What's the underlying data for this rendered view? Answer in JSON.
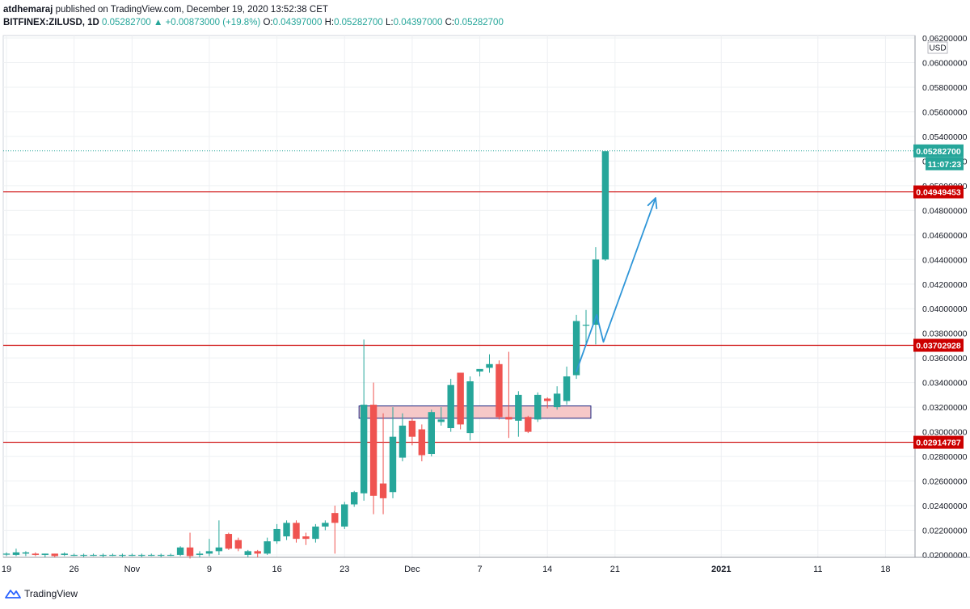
{
  "header": {
    "author": "atdhemaraj",
    "published_text": "published on TradingView.com, December 19, 2020 13:52:38 CET",
    "symbol": "BITFINEX:ZILUSD, 1D",
    "last": "0.05282700",
    "change": "▲ +0.00873000 (+19.8%)",
    "o_label": "O:",
    "o_value": "0.04397000",
    "h_label": "H:",
    "h_value": "0.05282700",
    "l_label": "L:",
    "l_value": "0.04397000",
    "c_label": "C:",
    "c_value": "0.05282700"
  },
  "footer": {
    "brand": "TradingView",
    "brand_icon": "tradingview-logo-icon"
  },
  "colors": {
    "up": "#26a69a",
    "down": "#ef5350",
    "level": "#cc0000",
    "arrow": "#2f96d8",
    "zone_fill": "#f6c8c8",
    "zone_border": "#1a237e"
  },
  "chart_data": {
    "type": "candlestick",
    "currency": "USD",
    "ylim": [
      0.0198,
      0.0622
    ],
    "y_ticks": [
      "0.06200000",
      "0.06000000",
      "0.05800000",
      "0.05600000",
      "0.05400000",
      "0.05200000",
      "0.05000000",
      "0.04800000",
      "0.04600000",
      "0.04400000",
      "0.04200000",
      "0.04000000",
      "0.03800000",
      "0.03600000",
      "0.03400000",
      "0.03200000",
      "0.03000000",
      "0.02800000",
      "0.02600000",
      "0.02400000",
      "0.02200000",
      "0.02000000"
    ],
    "x_ticks": [
      {
        "label": "19",
        "day": 0
      },
      {
        "label": "26",
        "day": 7
      },
      {
        "label": "Nov",
        "day": 13
      },
      {
        "label": "9",
        "day": 21
      },
      {
        "label": "16",
        "day": 28
      },
      {
        "label": "23",
        "day": 35
      },
      {
        "label": "Dec",
        "day": 42
      },
      {
        "label": "7",
        "day": 49
      },
      {
        "label": "14",
        "day": 56
      },
      {
        "label": "21",
        "day": 63
      },
      {
        "label": "2021",
        "day": 74
      },
      {
        "label": "11",
        "day": 84
      },
      {
        "label": "18",
        "day": 91
      }
    ],
    "last_price": "0.05282700",
    "countdown": "11:07:23",
    "levels": [
      {
        "value": 0.04949453,
        "label": "0.04949453"
      },
      {
        "value": 0.03702928,
        "label": "0.03702928"
      },
      {
        "value": 0.02914787,
        "label": "0.02914787"
      }
    ],
    "zone": {
      "from_day": 36.5,
      "to_day": 60.5,
      "top": 0.0321,
      "bottom": 0.0311
    },
    "projection": [
      [
        59,
        0.0349
      ],
      [
        61.1,
        0.0395
      ],
      [
        61.8,
        0.0373
      ],
      [
        67.2,
        0.049
      ]
    ],
    "candles": [
      {
        "day": 0,
        "o": 0.0201,
        "h": 0.0202,
        "l": 0.0199,
        "c": 0.0201
      },
      {
        "day": 1,
        "o": 0.02,
        "h": 0.0205,
        "l": 0.0199,
        "c": 0.0202
      },
      {
        "day": 2,
        "o": 0.0201,
        "h": 0.0203,
        "l": 0.0199,
        "c": 0.0202
      },
      {
        "day": 3,
        "o": 0.0201,
        "h": 0.0202,
        "l": 0.0199,
        "c": 0.02
      },
      {
        "day": 4,
        "o": 0.02,
        "h": 0.0201,
        "l": 0.0198,
        "c": 0.0201
      },
      {
        "day": 5,
        "o": 0.0201,
        "h": 0.0201,
        "l": 0.0198,
        "c": 0.0199
      },
      {
        "day": 6,
        "o": 0.02,
        "h": 0.0202,
        "l": 0.0199,
        "c": 0.0201
      },
      {
        "day": 7,
        "o": 0.02,
        "h": 0.0201,
        "l": 0.0199,
        "c": 0.02
      },
      {
        "day": 8,
        "o": 0.02,
        "h": 0.0201,
        "l": 0.0198,
        "c": 0.02
      },
      {
        "day": 9,
        "o": 0.02,
        "h": 0.0201,
        "l": 0.0199,
        "c": 0.02
      },
      {
        "day": 10,
        "o": 0.02,
        "h": 0.0201,
        "l": 0.0198,
        "c": 0.02
      },
      {
        "day": 11,
        "o": 0.02,
        "h": 0.0201,
        "l": 0.0199,
        "c": 0.02
      },
      {
        "day": 12,
        "o": 0.02,
        "h": 0.0201,
        "l": 0.0198,
        "c": 0.02
      },
      {
        "day": 13,
        "o": 0.02,
        "h": 0.0201,
        "l": 0.0199,
        "c": 0.02
      },
      {
        "day": 14,
        "o": 0.02,
        "h": 0.0201,
        "l": 0.0198,
        "c": 0.02
      },
      {
        "day": 15,
        "o": 0.02,
        "h": 0.0201,
        "l": 0.0199,
        "c": 0.02
      },
      {
        "day": 16,
        "o": 0.02,
        "h": 0.0201,
        "l": 0.0198,
        "c": 0.02
      },
      {
        "day": 17,
        "o": 0.02,
        "h": 0.0201,
        "l": 0.0199,
        "c": 0.02
      },
      {
        "day": 18,
        "o": 0.02,
        "h": 0.0207,
        "l": 0.0199,
        "c": 0.0206
      },
      {
        "day": 19,
        "o": 0.0206,
        "h": 0.0218,
        "l": 0.0197,
        "c": 0.0199
      },
      {
        "day": 20,
        "o": 0.02,
        "h": 0.0203,
        "l": 0.0198,
        "c": 0.0201
      },
      {
        "day": 21,
        "o": 0.0201,
        "h": 0.0213,
        "l": 0.0199,
        "c": 0.0203
      },
      {
        "day": 22,
        "o": 0.0203,
        "h": 0.0228,
        "l": 0.02,
        "c": 0.0206
      },
      {
        "day": 23,
        "o": 0.0217,
        "h": 0.0218,
        "l": 0.0204,
        "c": 0.0205
      },
      {
        "day": 24,
        "o": 0.0212,
        "h": 0.0214,
        "l": 0.0203,
        "c": 0.0205
      },
      {
        "day": 25,
        "o": 0.02,
        "h": 0.0204,
        "l": 0.0198,
        "c": 0.0203
      },
      {
        "day": 26,
        "o": 0.0203,
        "h": 0.0204,
        "l": 0.0198,
        "c": 0.0201
      },
      {
        "day": 27,
        "o": 0.0201,
        "h": 0.0214,
        "l": 0.02,
        "c": 0.0211
      },
      {
        "day": 28,
        "o": 0.0211,
        "h": 0.0225,
        "l": 0.0209,
        "c": 0.0221
      },
      {
        "day": 29,
        "o": 0.0215,
        "h": 0.0228,
        "l": 0.0212,
        "c": 0.0226
      },
      {
        "day": 30,
        "o": 0.0226,
        "h": 0.0228,
        "l": 0.021,
        "c": 0.0213
      },
      {
        "day": 31,
        "o": 0.0215,
        "h": 0.0218,
        "l": 0.0208,
        "c": 0.0213
      },
      {
        "day": 32,
        "o": 0.0213,
        "h": 0.0225,
        "l": 0.021,
        "c": 0.0223
      },
      {
        "day": 33,
        "o": 0.0223,
        "h": 0.0228,
        "l": 0.022,
        "c": 0.0226
      },
      {
        "day": 34,
        "o": 0.0234,
        "h": 0.024,
        "l": 0.0201,
        "c": 0.0226
      },
      {
        "day": 35,
        "o": 0.0223,
        "h": 0.0243,
        "l": 0.0221,
        "c": 0.0241
      },
      {
        "day": 36,
        "o": 0.0241,
        "h": 0.0252,
        "l": 0.0239,
        "c": 0.0251
      },
      {
        "day": 37,
        "o": 0.025,
        "h": 0.0375,
        "l": 0.0244,
        "c": 0.0322
      },
      {
        "day": 38,
        "o": 0.0322,
        "h": 0.034,
        "l": 0.0233,
        "c": 0.0248
      },
      {
        "day": 39,
        "o": 0.0258,
        "h": 0.0315,
        "l": 0.0233,
        "c": 0.0246
      },
      {
        "day": 40,
        "o": 0.0251,
        "h": 0.032,
        "l": 0.0246,
        "c": 0.0296
      },
      {
        "day": 41,
        "o": 0.0279,
        "h": 0.0315,
        "l": 0.0276,
        "c": 0.0305
      },
      {
        "day": 42,
        "o": 0.0309,
        "h": 0.0311,
        "l": 0.0289,
        "c": 0.0296
      },
      {
        "day": 43,
        "o": 0.0302,
        "h": 0.0306,
        "l": 0.0276,
        "c": 0.0281
      },
      {
        "day": 44,
        "o": 0.0282,
        "h": 0.0318,
        "l": 0.028,
        "c": 0.0316
      },
      {
        "day": 45,
        "o": 0.0308,
        "h": 0.032,
        "l": 0.0305,
        "c": 0.031
      },
      {
        "day": 46,
        "o": 0.0303,
        "h": 0.0343,
        "l": 0.03,
        "c": 0.0338
      },
      {
        "day": 47,
        "o": 0.0348,
        "h": 0.0348,
        "l": 0.0302,
        "c": 0.0306
      },
      {
        "day": 48,
        "o": 0.0299,
        "h": 0.0345,
        "l": 0.0293,
        "c": 0.0341
      },
      {
        "day": 49,
        "o": 0.0349,
        "h": 0.035,
        "l": 0.0345,
        "c": 0.0351
      },
      {
        "day": 50,
        "o": 0.0352,
        "h": 0.0363,
        "l": 0.0348,
        "c": 0.0355
      },
      {
        "day": 51,
        "o": 0.0355,
        "h": 0.0358,
        "l": 0.031,
        "c": 0.0312
      },
      {
        "day": 52,
        "o": 0.0312,
        "h": 0.0365,
        "l": 0.0295,
        "c": 0.031
      },
      {
        "day": 53,
        "o": 0.0309,
        "h": 0.0333,
        "l": 0.0296,
        "c": 0.033
      },
      {
        "day": 54,
        "o": 0.0312,
        "h": 0.0313,
        "l": 0.0299,
        "c": 0.03
      },
      {
        "day": 55,
        "o": 0.031,
        "h": 0.0332,
        "l": 0.0308,
        "c": 0.033
      },
      {
        "day": 56,
        "o": 0.0327,
        "h": 0.0328,
        "l": 0.0319,
        "c": 0.0325
      },
      {
        "day": 57,
        "o": 0.032,
        "h": 0.0337,
        "l": 0.0318,
        "c": 0.0331
      },
      {
        "day": 58,
        "o": 0.0325,
        "h": 0.0353,
        "l": 0.0322,
        "c": 0.0345
      },
      {
        "day": 59,
        "o": 0.0346,
        "h": 0.0395,
        "l": 0.0343,
        "c": 0.039
      },
      {
        "day": 60,
        "o": 0.0387,
        "h": 0.0399,
        "l": 0.0371,
        "c": 0.0387
      },
      {
        "day": 61,
        "o": 0.0387,
        "h": 0.045,
        "l": 0.0371,
        "c": 0.044
      },
      {
        "day": 62,
        "o": 0.044,
        "h": 0.0528,
        "l": 0.0439,
        "c": 0.0528
      }
    ]
  }
}
